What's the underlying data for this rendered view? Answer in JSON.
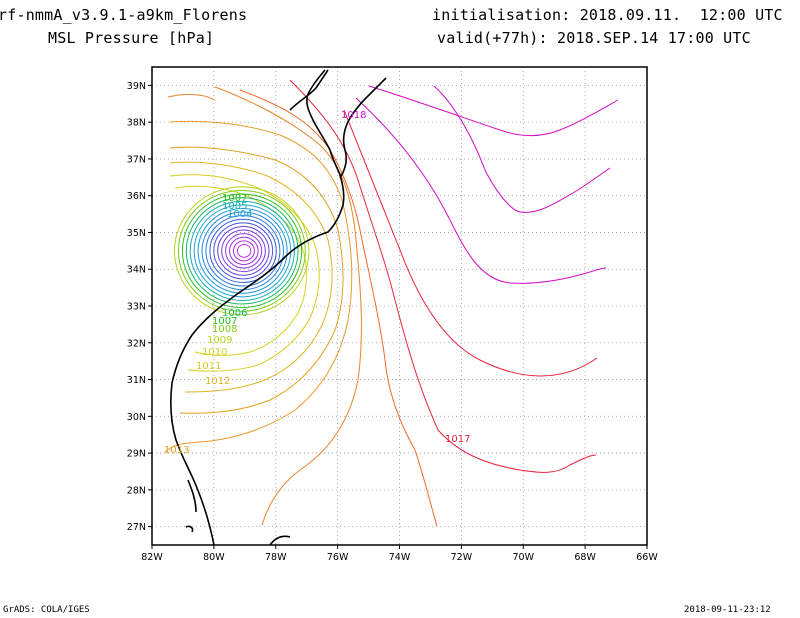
{
  "header": {
    "model": "rf-nmmA_v3.9.1-a9km_Florens",
    "field": "MSL Pressure [hPa]",
    "init": "initialisation: 2018.09.11.  12:00 UTC",
    "valid": "valid(+77h): 2018.SEP.14 17:00 UTC"
  },
  "footer": {
    "left": "GrADS: COLA/IGES",
    "right": "2018-09-11-23:12"
  },
  "map": {
    "lon_range": [
      -82,
      -66
    ],
    "lat_range": [
      26.5,
      39.5
    ],
    "x_tick_labels": [
      "82W",
      "80W",
      "78W",
      "76W",
      "74W",
      "72W",
      "70W",
      "68W",
      "66W"
    ],
    "y_tick_labels": [
      "27N",
      "28N",
      "29N",
      "30N",
      "31N",
      "32N",
      "33N",
      "34N",
      "35N",
      "36N",
      "37N",
      "38N",
      "39N"
    ],
    "grid": "dotted",
    "storm_center": {
      "lon": -79.1,
      "lat": 34.5
    },
    "contour_labels": [
      "1018",
      "1017",
      "1013",
      "1012",
      "1011",
      "1010",
      "1009",
      "1008",
      "1007",
      "1006",
      "1007",
      "1005",
      "1004"
    ],
    "colors": {
      "1018": "#d10ec4",
      "1017": "#e8243c",
      "1016": "#ee6a2a",
      "1015": "#e8842a",
      "1014": "#eb9a2c",
      "1013": "#e0a21e",
      "1012": "#e2b423",
      "1011": "#dccb1c",
      "1010": "#d4d41c",
      "1009": "#b7d41a",
      "1008": "#7fcc1a",
      "1007": "#2dbe1e",
      "1006": "#19b868",
      "1005": "#15b0ae",
      "1004": "#1aa6d8",
      "low_inner": "#3060e0",
      "low_core": "#9d30e0",
      "coast": "#000000"
    }
  }
}
